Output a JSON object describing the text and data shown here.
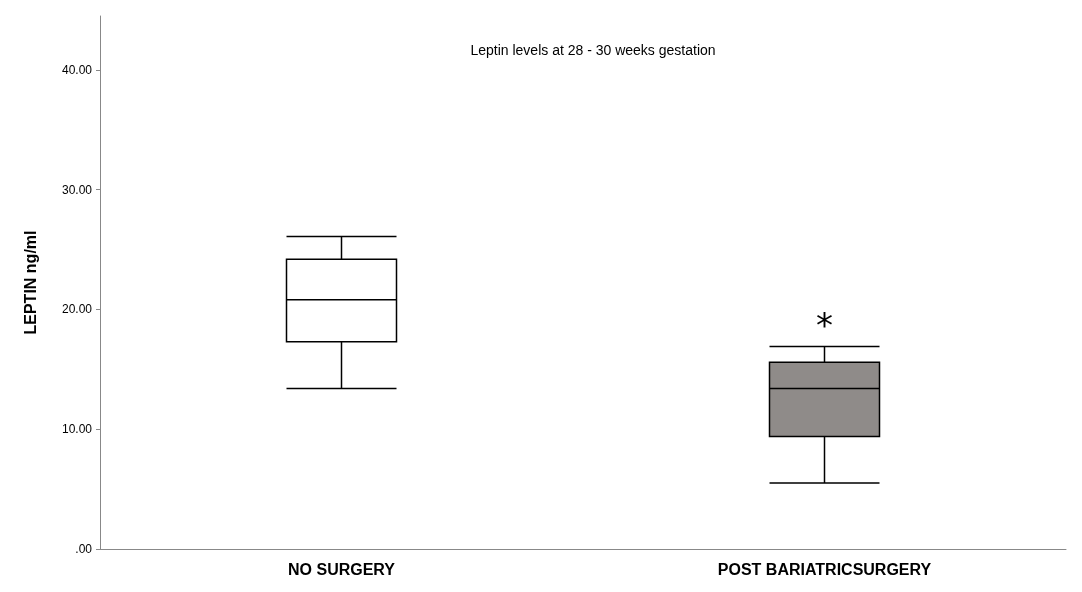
{
  "chart_data": {
    "type": "box",
    "title": "Leptin levels at 28 - 30 weeks gestation",
    "ylabel": "LEPTIN ng/ml",
    "categories": [
      "NO SURGERY",
      "POST BARIATRICSURGERY"
    ],
    "boxes": [
      {
        "low": 13.4,
        "q1": 17.3,
        "median": 20.8,
        "q3": 24.2,
        "high": 26.1
      },
      {
        "low": 5.5,
        "q1": 9.4,
        "median": 13.4,
        "q3": 15.6,
        "high": 16.9
      }
    ],
    "colors": [
      "#ffffff",
      "#8f8b89"
    ],
    "ylim": [
      0,
      44.5
    ],
    "yticks": [
      {
        "value": 0,
        "label": ".00"
      },
      {
        "value": 10,
        "label": "10.00"
      },
      {
        "value": 20,
        "label": "20.00"
      },
      {
        "value": 30,
        "label": "30.00"
      },
      {
        "value": 40,
        "label": "40.00"
      }
    ],
    "annotations": [
      "*"
    ],
    "grid": false
  }
}
